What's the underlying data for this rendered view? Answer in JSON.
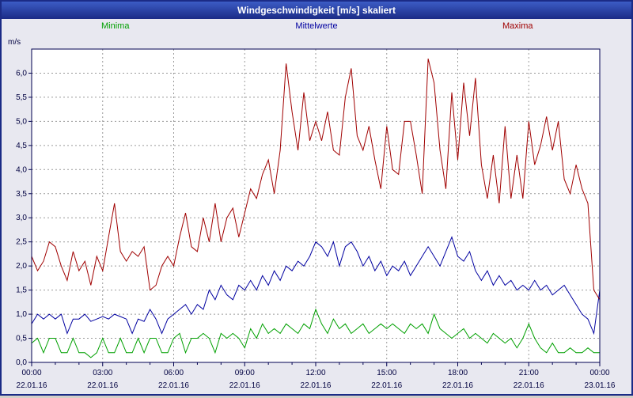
{
  "window": {
    "title": "Windgeschwindigkeit [m/s] skaliert"
  },
  "legend": [
    {
      "label": "Minima",
      "color": "#00a000"
    },
    {
      "label": "Mittelwerte",
      "color": "#0000a0"
    },
    {
      "label": "Maxima",
      "color": "#a00000"
    }
  ],
  "colors": {
    "background": "#e8e8f0",
    "plot_background": "#ffffff",
    "frame": "#000050",
    "grid": "#9a9a9a",
    "tick_text": "#000040",
    "titlebar": "#1b2b86"
  },
  "chart_data": {
    "type": "line",
    "title": "Windgeschwindigkeit [m/s] skaliert",
    "ylabel": "m/s",
    "xlabel": "",
    "ylim": [
      0,
      6.5
    ],
    "y_tick_step": 0.5,
    "grid": true,
    "legend_position": "top",
    "x_minutes_step": 15,
    "y_tick_labels": [
      "0,0",
      "0,5",
      "1,0",
      "1,5",
      "2,0",
      "2,5",
      "3,0",
      "3,5",
      "4,0",
      "4,5",
      "5,0",
      "5,5",
      "6,0"
    ],
    "x_tick_labels": [
      {
        "time": "00:00",
        "date": "22.01.16"
      },
      {
        "time": "03:00",
        "date": "22.01.16"
      },
      {
        "time": "06:00",
        "date": "22.01.16"
      },
      {
        "time": "09:00",
        "date": "22.01.16"
      },
      {
        "time": "12:00",
        "date": "22.01.16"
      },
      {
        "time": "15:00",
        "date": "22.01.16"
      },
      {
        "time": "18:00",
        "date": "22.01.16"
      },
      {
        "time": "21:00",
        "date": "22.01.16"
      },
      {
        "time": "00:00",
        "date": "23.01.16"
      }
    ],
    "series": [
      {
        "name": "Minima",
        "color": "#00a000",
        "values": [
          0.4,
          0.5,
          0.2,
          0.5,
          0.5,
          0.2,
          0.2,
          0.5,
          0.2,
          0.2,
          0.1,
          0.2,
          0.5,
          0.2,
          0.2,
          0.5,
          0.2,
          0.2,
          0.5,
          0.2,
          0.5,
          0.5,
          0.2,
          0.2,
          0.5,
          0.6,
          0.2,
          0.5,
          0.5,
          0.6,
          0.5,
          0.2,
          0.6,
          0.5,
          0.6,
          0.5,
          0.3,
          0.7,
          0.5,
          0.8,
          0.6,
          0.7,
          0.6,
          0.8,
          0.7,
          0.6,
          0.8,
          0.7,
          1.1,
          0.8,
          0.6,
          0.9,
          0.7,
          0.8,
          0.6,
          0.7,
          0.8,
          0.6,
          0.7,
          0.8,
          0.7,
          0.8,
          0.7,
          0.6,
          0.8,
          0.7,
          0.8,
          0.6,
          1.0,
          0.7,
          0.6,
          0.5,
          0.6,
          0.7,
          0.5,
          0.6,
          0.5,
          0.4,
          0.6,
          0.5,
          0.4,
          0.5,
          0.3,
          0.5,
          0.8,
          0.5,
          0.3,
          0.2,
          0.4,
          0.2,
          0.2,
          0.3,
          0.2,
          0.2,
          0.3,
          0.2,
          0.2
        ]
      },
      {
        "name": "Mittelwerte",
        "color": "#0000a0",
        "values": [
          0.8,
          1.0,
          0.9,
          1.0,
          0.9,
          1.0,
          0.6,
          0.9,
          0.9,
          1.0,
          0.85,
          0.9,
          0.95,
          0.9,
          1.0,
          0.95,
          0.9,
          0.6,
          0.9,
          0.85,
          1.1,
          0.9,
          0.6,
          0.9,
          1.0,
          1.1,
          1.2,
          1.0,
          1.2,
          1.1,
          1.5,
          1.3,
          1.6,
          1.4,
          1.3,
          1.6,
          1.5,
          1.7,
          1.5,
          1.8,
          1.6,
          1.9,
          1.7,
          2.0,
          1.9,
          2.1,
          2.0,
          2.2,
          2.5,
          2.4,
          2.2,
          2.5,
          2.0,
          2.4,
          2.5,
          2.3,
          2.0,
          2.2,
          1.9,
          2.1,
          1.8,
          2.0,
          1.9,
          2.1,
          1.8,
          2.0,
          2.2,
          2.4,
          2.2,
          2.0,
          2.3,
          2.6,
          2.2,
          2.1,
          2.3,
          1.9,
          1.7,
          1.9,
          1.6,
          1.8,
          1.6,
          1.7,
          1.5,
          1.6,
          1.5,
          1.7,
          1.5,
          1.6,
          1.4,
          1.5,
          1.6,
          1.4,
          1.2,
          1.0,
          0.9,
          0.6,
          1.5
        ]
      },
      {
        "name": "Maxima",
        "color": "#a00000",
        "values": [
          2.2,
          1.9,
          2.1,
          2.5,
          2.4,
          2.0,
          1.7,
          2.3,
          1.9,
          2.1,
          1.6,
          2.2,
          1.9,
          2.6,
          3.3,
          2.3,
          2.1,
          2.3,
          2.2,
          2.4,
          1.5,
          1.6,
          2.0,
          2.2,
          2.0,
          2.6,
          3.1,
          2.4,
          2.3,
          3.0,
          2.5,
          3.3,
          2.5,
          3.0,
          3.2,
          2.6,
          3.1,
          3.6,
          3.4,
          3.9,
          4.2,
          3.5,
          4.4,
          6.2,
          5.2,
          4.4,
          5.6,
          4.6,
          5.0,
          4.6,
          5.2,
          4.4,
          4.3,
          5.5,
          6.1,
          4.7,
          4.4,
          4.9,
          4.2,
          3.6,
          4.9,
          4.0,
          3.9,
          5.0,
          5.0,
          4.3,
          3.5,
          6.3,
          5.8,
          4.4,
          3.6,
          5.6,
          4.2,
          5.8,
          4.7,
          5.9,
          4.1,
          3.4,
          4.3,
          3.3,
          4.9,
          3.4,
          4.3,
          3.4,
          5.0,
          4.1,
          4.5,
          5.1,
          4.4,
          5.0,
          3.8,
          3.5,
          4.1,
          3.6,
          3.3,
          1.5,
          1.3
        ]
      }
    ]
  }
}
